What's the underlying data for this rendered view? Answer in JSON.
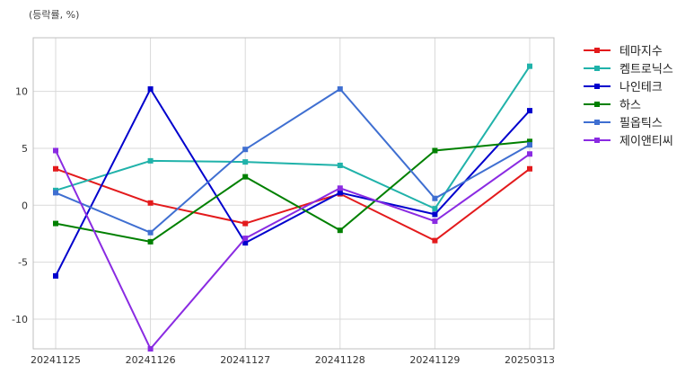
{
  "chart_data": {
    "type": "line",
    "unit_label": "(등락률, %)",
    "x": [
      "20241125",
      "20241126",
      "20241127",
      "20241128",
      "20241129",
      "20250313"
    ],
    "yticks": [
      10,
      5,
      0,
      -5,
      -10
    ],
    "ylim": [
      -12.6,
      14.7
    ],
    "grid": true,
    "legend_position": "right",
    "series": [
      {
        "name": "테마지수",
        "color": "#e31a1c",
        "values": [
          3.2,
          0.2,
          -1.6,
          1.0,
          -3.1,
          3.2
        ]
      },
      {
        "name": "켐트로닉스",
        "color": "#20b2aa",
        "values": [
          1.3,
          3.9,
          3.8,
          3.5,
          -0.3,
          12.2
        ]
      },
      {
        "name": "나인테크",
        "color": "#0000cd",
        "values": [
          -6.2,
          10.2,
          -3.3,
          1.1,
          -0.8,
          8.3
        ]
      },
      {
        "name": "하스",
        "color": "#008000",
        "values": [
          -1.6,
          -3.2,
          2.5,
          -2.2,
          4.8,
          5.6
        ]
      },
      {
        "name": "필옵틱스",
        "color": "#3f6fd1",
        "values": [
          1.1,
          -2.4,
          4.9,
          10.2,
          0.6,
          5.3
        ]
      },
      {
        "name": "제이앤티씨",
        "color": "#8a2be2",
        "values": [
          4.8,
          -12.6,
          -2.9,
          1.5,
          -1.4,
          4.5
        ]
      }
    ]
  }
}
